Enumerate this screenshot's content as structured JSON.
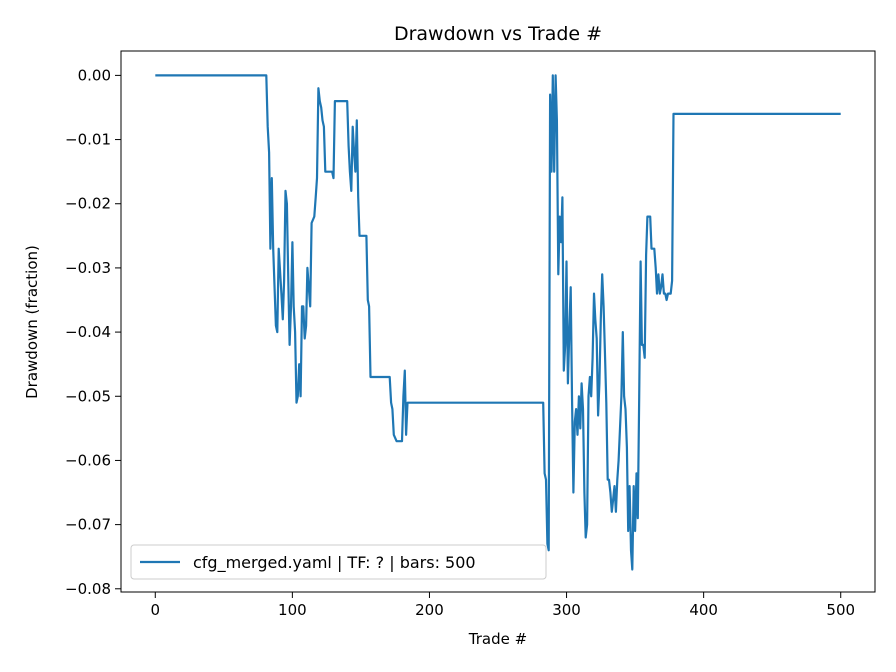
{
  "chart_data": {
    "type": "line",
    "title": "Drawdown vs Trade #",
    "xlabel": "Trade #",
    "ylabel": "Drawdown (fraction)",
    "xlim": [
      -25,
      525
    ],
    "ylim": [
      -0.0805,
      0.0038
    ],
    "x_ticks": [
      0,
      100,
      200,
      300,
      400,
      500
    ],
    "y_ticks": [
      0.0,
      -0.01,
      -0.02,
      -0.03,
      -0.04,
      -0.05,
      -0.06,
      -0.07,
      -0.08
    ],
    "x_tick_labels": [
      "0",
      "100",
      "200",
      "300",
      "400",
      "500"
    ],
    "y_tick_labels": [
      "0.00",
      "−0.01",
      "−0.02",
      "−0.03",
      "−0.04",
      "−0.05",
      "−0.06",
      "−0.07",
      "−0.08"
    ],
    "grid": false,
    "legend_position": "lower-left",
    "series": [
      {
        "name": "cfg_merged.yaml | TF: ? | bars: 500",
        "color": "#1f77b4",
        "points": [
          [
            0,
            0.0
          ],
          [
            81,
            0.0
          ],
          [
            82,
            -0.008
          ],
          [
            83,
            -0.012
          ],
          [
            84,
            -0.027
          ],
          [
            85,
            -0.016
          ],
          [
            86,
            -0.027
          ],
          [
            88,
            -0.039
          ],
          [
            89,
            -0.04
          ],
          [
            90,
            -0.027
          ],
          [
            92,
            -0.034
          ],
          [
            93,
            -0.038
          ],
          [
            94,
            -0.032
          ],
          [
            95,
            -0.018
          ],
          [
            96,
            -0.02
          ],
          [
            97,
            -0.032
          ],
          [
            98,
            -0.042
          ],
          [
            99,
            -0.036
          ],
          [
            100,
            -0.026
          ],
          [
            101,
            -0.036
          ],
          [
            102,
            -0.04
          ],
          [
            103,
            -0.051
          ],
          [
            104,
            -0.05
          ],
          [
            105,
            -0.045
          ],
          [
            106,
            -0.05
          ],
          [
            107,
            -0.036
          ],
          [
            108,
            -0.036
          ],
          [
            109,
            -0.041
          ],
          [
            110,
            -0.039
          ],
          [
            111,
            -0.03
          ],
          [
            112,
            -0.033
          ],
          [
            113,
            -0.036
          ],
          [
            114,
            -0.023
          ],
          [
            116,
            -0.022
          ],
          [
            117,
            -0.019
          ],
          [
            118,
            -0.016
          ],
          [
            119,
            -0.002
          ],
          [
            120,
            -0.004
          ],
          [
            121,
            -0.005
          ],
          [
            122,
            -0.007
          ],
          [
            123,
            -0.008
          ],
          [
            124,
            -0.015
          ],
          [
            129,
            -0.015
          ],
          [
            130,
            -0.016
          ],
          [
            131,
            -0.004
          ],
          [
            140,
            -0.004
          ],
          [
            141,
            -0.011
          ],
          [
            142,
            -0.015
          ],
          [
            143,
            -0.018
          ],
          [
            144,
            -0.008
          ],
          [
            145,
            -0.012
          ],
          [
            146,
            -0.015
          ],
          [
            147,
            -0.007
          ],
          [
            148,
            -0.019
          ],
          [
            149,
            -0.025
          ],
          [
            154,
            -0.025
          ],
          [
            155,
            -0.035
          ],
          [
            156,
            -0.036
          ],
          [
            157,
            -0.047
          ],
          [
            171,
            -0.047
          ],
          [
            172,
            -0.051
          ],
          [
            173,
            -0.052
          ],
          [
            174,
            -0.056
          ],
          [
            176,
            -0.057
          ],
          [
            180,
            -0.057
          ],
          [
            181,
            -0.05
          ],
          [
            182,
            -0.046
          ],
          [
            183,
            -0.056
          ],
          [
            184,
            -0.051
          ],
          [
            283,
            -0.051
          ],
          [
            284,
            -0.062
          ],
          [
            285,
            -0.063
          ],
          [
            286,
            -0.073
          ],
          [
            287,
            -0.074
          ],
          [
            288,
            -0.003
          ],
          [
            289,
            -0.015
          ],
          [
            290,
            0.0
          ],
          [
            291,
            -0.015
          ],
          [
            292,
            0.0
          ],
          [
            293,
            -0.007
          ],
          [
            294,
            -0.031
          ],
          [
            295,
            -0.022
          ],
          [
            296,
            -0.026
          ],
          [
            297,
            -0.019
          ],
          [
            298,
            -0.046
          ],
          [
            299,
            -0.042
          ],
          [
            300,
            -0.029
          ],
          [
            301,
            -0.048
          ],
          [
            302,
            -0.04
          ],
          [
            303,
            -0.033
          ],
          [
            304,
            -0.05
          ],
          [
            305,
            -0.065
          ],
          [
            306,
            -0.054
          ],
          [
            307,
            -0.052
          ],
          [
            308,
            -0.056
          ],
          [
            309,
            -0.05
          ],
          [
            310,
            -0.055
          ],
          [
            311,
            -0.048
          ],
          [
            312,
            -0.052
          ],
          [
            313,
            -0.065
          ],
          [
            314,
            -0.072
          ],
          [
            315,
            -0.07
          ],
          [
            316,
            -0.05
          ],
          [
            317,
            -0.047
          ],
          [
            318,
            -0.05
          ],
          [
            319,
            -0.044
          ],
          [
            320,
            -0.034
          ],
          [
            321,
            -0.038
          ],
          [
            322,
            -0.041
          ],
          [
            323,
            -0.053
          ],
          [
            324,
            -0.048
          ],
          [
            325,
            -0.038
          ],
          [
            326,
            -0.031
          ],
          [
            327,
            -0.036
          ],
          [
            328,
            -0.043
          ],
          [
            329,
            -0.051
          ],
          [
            330,
            -0.063
          ],
          [
            331,
            -0.063
          ],
          [
            332,
            -0.065
          ],
          [
            333,
            -0.068
          ],
          [
            334,
            -0.066
          ],
          [
            335,
            -0.064
          ],
          [
            336,
            -0.068
          ],
          [
            337,
            -0.063
          ],
          [
            338,
            -0.06
          ],
          [
            339,
            -0.055
          ],
          [
            340,
            -0.05
          ],
          [
            341,
            -0.04
          ],
          [
            342,
            -0.05
          ],
          [
            343,
            -0.052
          ],
          [
            344,
            -0.058
          ],
          [
            345,
            -0.071
          ],
          [
            346,
            -0.064
          ],
          [
            347,
            -0.074
          ],
          [
            348,
            -0.077
          ],
          [
            349,
            -0.064
          ],
          [
            350,
            -0.071
          ],
          [
            351,
            -0.062
          ],
          [
            352,
            -0.069
          ],
          [
            353,
            -0.05
          ],
          [
            354,
            -0.029
          ],
          [
            355,
            -0.042
          ],
          [
            356,
            -0.042
          ],
          [
            357,
            -0.044
          ],
          [
            358,
            -0.028
          ],
          [
            359,
            -0.022
          ],
          [
            360,
            -0.022
          ],
          [
            361,
            -0.022
          ],
          [
            362,
            -0.027
          ],
          [
            364,
            -0.027
          ],
          [
            365,
            -0.03
          ],
          [
            366,
            -0.034
          ],
          [
            367,
            -0.031
          ],
          [
            368,
            -0.034
          ],
          [
            369,
            -0.033
          ],
          [
            370,
            -0.031
          ],
          [
            371,
            -0.034
          ],
          [
            372,
            -0.034
          ],
          [
            373,
            -0.035
          ],
          [
            374,
            -0.034
          ],
          [
            376,
            -0.034
          ],
          [
            377,
            -0.032
          ],
          [
            378,
            -0.006
          ],
          [
            500,
            -0.006
          ]
        ]
      }
    ]
  }
}
